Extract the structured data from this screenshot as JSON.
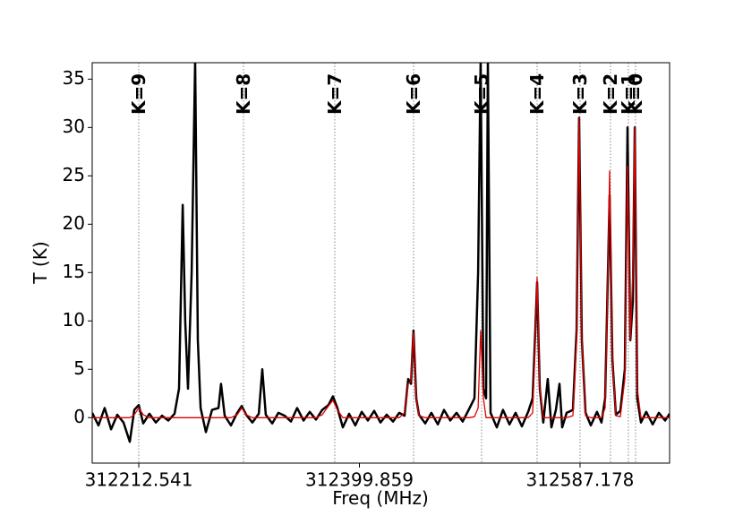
{
  "chart_data": {
    "type": "line",
    "xlabel": "Freq (MHz)",
    "ylabel": "T (K)",
    "xlim": [
      312173.0,
      312663.2
    ],
    "ylim": [
      -4.7,
      36.7
    ],
    "xticks": [
      312212.541,
      312399.859,
      312587.178
    ],
    "yticks": [
      0,
      5,
      10,
      15,
      20,
      25,
      30,
      35
    ],
    "x": [
      312173.0,
      312178.3,
      312183.6,
      312189.0,
      312194.3,
      312199.6,
      312204.9,
      312208.7,
      312212.5,
      312216.3,
      312221.6,
      312227.0,
      312232.3,
      312237.6,
      312242.9,
      312246.7,
      312249.8,
      312252.0,
      312254.3,
      312257.4,
      312260.4,
      312262.7,
      312265.0,
      312269.5,
      312274.8,
      312280.2,
      312282.4,
      312285.5,
      312290.8,
      312296.1,
      312299.9,
      312303.7,
      312309.0,
      312314.4,
      312317.4,
      312320.4,
      312325.8,
      312331.1,
      312336.4,
      312341.7,
      312347.0,
      312352.4,
      312357.7,
      312363.0,
      312368.3,
      312373.6,
      312377.4,
      312381.2,
      312385.8,
      312391.1,
      312396.4,
      312401.8,
      312407.1,
      312412.4,
      312417.7,
      312423.0,
      312428.4,
      312433.7,
      312438.2,
      312441.3,
      312443.6,
      312445.8,
      312448.1,
      312450.4,
      312455.7,
      312461.0,
      312466.4,
      312471.7,
      312477.0,
      312482.3,
      312487.6,
      312493.0,
      312497.5,
      312500.6,
      312502.8,
      312505.1,
      312507.4,
      312508.9,
      312511.2,
      312516.5,
      312521.8,
      312527.2,
      312532.5,
      312537.8,
      312543.1,
      312546.9,
      312549.2,
      312550.7,
      312553.0,
      312556.0,
      312559.8,
      312562.9,
      312566.7,
      312569.7,
      312572.0,
      312575.8,
      312581.1,
      312584.2,
      312586.4,
      312588.7,
      312591.8,
      312596.3,
      312601.6,
      312605.4,
      312608.5,
      312610.8,
      312612.3,
      312614.6,
      312617.6,
      312621.4,
      312625.2,
      312627.5,
      312629.8,
      312632.0,
      312633.6,
      312635.8,
      312638.9,
      312643.4,
      312648.8,
      312654.1,
      312659.4,
      312663.2
    ],
    "series": [
      {
        "color": "#000000",
        "values": [
          0.5,
          -0.8,
          1.0,
          -1.2,
          0.3,
          -0.5,
          -2.5,
          0.8,
          1.3,
          -0.6,
          0.4,
          -0.5,
          0.2,
          -0.3,
          0.4,
          3,
          22,
          10,
          3,
          15,
          37,
          8,
          1,
          -1.5,
          0.8,
          1,
          3.5,
          0.2,
          -0.8,
          0.5,
          1.2,
          0.3,
          -0.5,
          0.4,
          5,
          0.3,
          -0.6,
          0.5,
          0.2,
          -0.4,
          1,
          -0.3,
          0.6,
          -0.2,
          0.8,
          1.3,
          2.2,
          1,
          -1,
          0.4,
          -0.8,
          0.6,
          -0.3,
          0.7,
          -0.5,
          0.3,
          -0.4,
          0.5,
          0.2,
          4,
          3.5,
          9,
          2,
          0.3,
          -0.6,
          0.5,
          -0.7,
          0.8,
          -0.3,
          0.5,
          -0.4,
          0.9,
          2,
          15,
          37,
          3,
          2,
          37,
          0.5,
          -1,
          0.8,
          -0.7,
          0.5,
          -0.9,
          0.6,
          2,
          9,
          14,
          3,
          -0.5,
          4,
          -1,
          0.8,
          3.5,
          -1,
          0.5,
          0.8,
          9,
          31,
          8,
          0.5,
          -0.8,
          0.6,
          -0.5,
          2,
          15,
          23,
          6,
          0.3,
          0.7,
          5,
          30,
          8,
          12,
          30,
          2,
          -0.5,
          0.6,
          -0.7,
          0.5,
          -0.3,
          0.4
        ]
      },
      {
        "color": "#e00000",
        "values": [
          0,
          0,
          0,
          0,
          0,
          0,
          0,
          0.3,
          1,
          0.3,
          0,
          0,
          0,
          0,
          0,
          0,
          0,
          0,
          0,
          0,
          0,
          0,
          0,
          0,
          0,
          0,
          0,
          0,
          0,
          0.3,
          1,
          0.3,
          0,
          0,
          0,
          0,
          0,
          0,
          0,
          0,
          0,
          0,
          0,
          0,
          0.3,
          1.2,
          1.8,
          0.8,
          0,
          0,
          0,
          0,
          0,
          0,
          0,
          0,
          0,
          0,
          0.5,
          3.5,
          3.8,
          8.8,
          2,
          0.2,
          0,
          0,
          0,
          0,
          0,
          0,
          0,
          0,
          0.1,
          1,
          9,
          2,
          0,
          0,
          0,
          0,
          0,
          0,
          0,
          0,
          0,
          0.5,
          8,
          14.5,
          3,
          0,
          0,
          0,
          0,
          0,
          0,
          0,
          0.2,
          8,
          31,
          8,
          0.2,
          0,
          0,
          0,
          1,
          15,
          25.5,
          6,
          0.2,
          0.1,
          4,
          26,
          8,
          15,
          30,
          3,
          0,
          0,
          0,
          0,
          0,
          0
        ]
      }
    ],
    "annotations": [
      {
        "text": "K=9",
        "x": 312212.54
      },
      {
        "text": "K=8",
        "x": 312301.45
      },
      {
        "text": "K=7",
        "x": 312378.96
      },
      {
        "text": "K=6",
        "x": 312445.83
      },
      {
        "text": "K=5",
        "x": 312503.59
      },
      {
        "text": "K=4",
        "x": 312550.7
      },
      {
        "text": "K=3",
        "x": 312587.18
      },
      {
        "text": "K=2",
        "x": 312613.01
      },
      {
        "text": "K=1",
        "x": 312628.21
      },
      {
        "text": "K=0",
        "x": 312634.29
      }
    ]
  }
}
